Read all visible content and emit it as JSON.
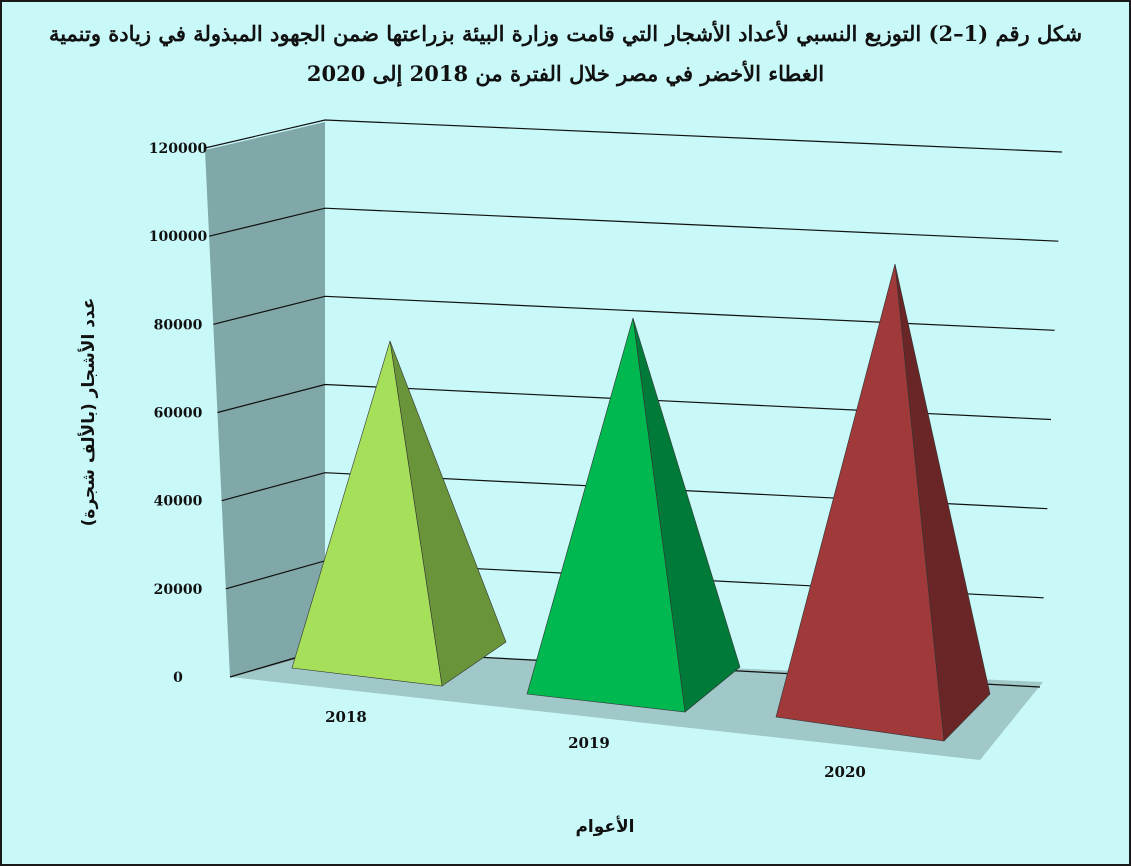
{
  "chart_data": {
    "type": "bar",
    "style": "3d-pyramid",
    "title": "شكل رقم (1–2) التوزيع النسبي لأعداد الأشجار التي قامت وزارة البيئة بزراعتها ضمن الجهود المبذولة في زيادة وتنمية الغطاء الأخضر في مصر خلال الفترة من 2018 إلى 2020",
    "xlabel": "الأعوام",
    "ylabel": "عدد الأشجار (بالألف شجرة)",
    "categories": [
      "2018",
      "2019",
      "2020"
    ],
    "values": [
      80000,
      87000,
      100000
    ],
    "ylim": [
      0,
      120000
    ],
    "yticks": [
      "0",
      "20000",
      "40000",
      "60000",
      "80000",
      "100000",
      "120000"
    ],
    "grid": true,
    "legend": "none",
    "colors": {
      "background": "#c8f8f8",
      "back_wall": "#80a8a8",
      "floor": "#a0c8c8",
      "bars": [
        {
          "front": "#a6e05a",
          "side": "#6a943a"
        },
        {
          "front": "#00b850",
          "side": "#007a38"
        },
        {
          "front": "#a03a3a",
          "side": "#6a2626"
        }
      ]
    }
  }
}
